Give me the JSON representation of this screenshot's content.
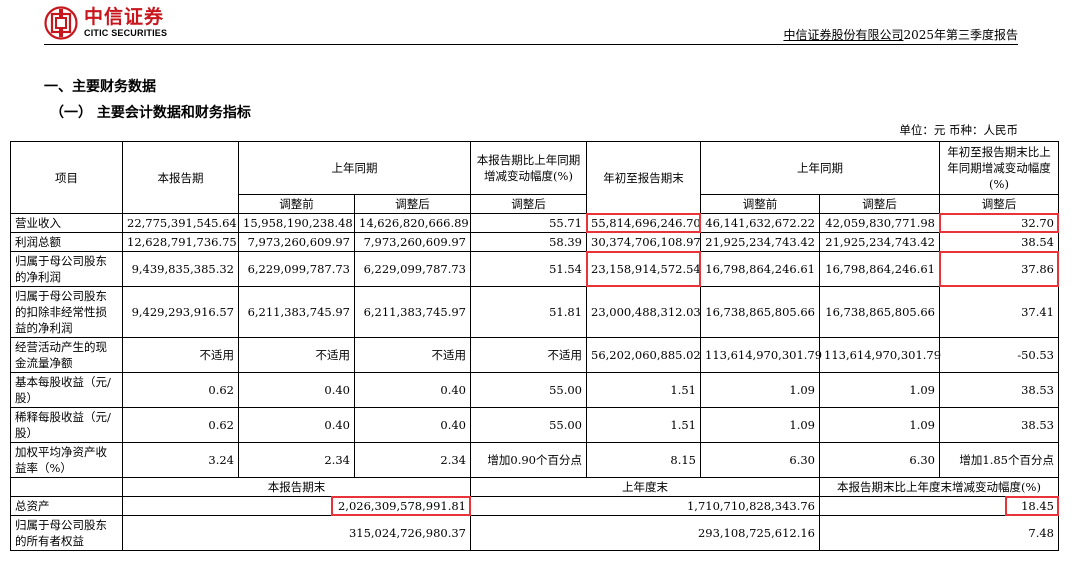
{
  "header": {
    "logo_cn": "中信证券",
    "logo_en": "CITIC SECURITIES",
    "company": "中信证券股份有限公司",
    "report": "2025年第三季度报告"
  },
  "section_title": "一、主要财务数据",
  "subsection_title": "（一） 主要会计数据和财务指标",
  "unit_line": "单位：元  币种：人民币",
  "table": {
    "head": {
      "item": "项目",
      "current": "本报告期",
      "prior_same": "上年同期",
      "change_current": "本报告期比上年同期增减变动幅度(%)",
      "ytd": "年初至报告期末",
      "prior_same_ytd": "上年同期",
      "change_ytd": "年初至报告期末比上年同期增减变动幅度(%)",
      "before_adj": "调整前",
      "after_adj": "调整后",
      "after_adj_change": "调整后",
      "before_adj_ytd": "调整前",
      "after_adj_ytd": "调整后",
      "after_adj_change_ytd": "调整后"
    },
    "rows": [
      {
        "item": "营业收入",
        "cur": "22,775,391,545.64",
        "pb": "15,958,190,238.48",
        "pa": "14,626,820,666.89",
        "chg": "55.71",
        "ytd": "55,814,696,246.70",
        "ypb": "46,141,632,672.22",
        "ypa": "42,059,830,771.98",
        "ychg": "32.70"
      },
      {
        "item": "利润总额",
        "cur": "12,628,791,736.75",
        "pb": "7,973,260,609.97",
        "pa": "7,973,260,609.97",
        "chg": "58.39",
        "ytd": "30,374,706,108.97",
        "ypb": "21,925,234,743.42",
        "ypa": "21,925,234,743.42",
        "ychg": "38.54"
      },
      {
        "item": "归属于母公司股东的净利润",
        "cur": "9,439,835,385.32",
        "pb": "6,229,099,787.73",
        "pa": "6,229,099,787.73",
        "chg": "51.54",
        "ytd": "23,158,914,572.54",
        "ypb": "16,798,864,246.61",
        "ypa": "16,798,864,246.61",
        "ychg": "37.86"
      },
      {
        "item": "归属于母公司股东的扣除非经常性损益的净利润",
        "cur": "9,429,293,916.57",
        "pb": "6,211,383,745.97",
        "pa": "6,211,383,745.97",
        "chg": "51.81",
        "ytd": "23,000,488,312.03",
        "ypb": "16,738,865,805.66",
        "ypa": "16,738,865,805.66",
        "ychg": "37.41"
      },
      {
        "item": "经营活动产生的现金流量净额",
        "cur": "不适用",
        "pb": "不适用",
        "pa": "不适用",
        "chg": "不适用",
        "ytd": "56,202,060,885.02",
        "ypb": "113,614,970,301.79",
        "ypa": "113,614,970,301.79",
        "ychg": "-50.53"
      },
      {
        "item": "基本每股收益（元/股）",
        "cur": "0.62",
        "pb": "0.40",
        "pa": "0.40",
        "chg": "55.00",
        "ytd": "1.51",
        "ypb": "1.09",
        "ypa": "1.09",
        "ychg": "38.53"
      },
      {
        "item": "稀释每股收益（元/股）",
        "cur": "0.62",
        "pb": "0.40",
        "pa": "0.40",
        "chg": "55.00",
        "ytd": "1.51",
        "ypb": "1.09",
        "ypa": "1.09",
        "ychg": "38.53"
      },
      {
        "item": "加权平均净资产收益率（%）",
        "cur": "3.24",
        "pb": "2.34",
        "pa": "2.34",
        "chg": "增加0.90个百分点",
        "ytd": "8.15",
        "ypb": "6.30",
        "ypa": "6.30",
        "ychg": "增加1.85个百分点"
      }
    ],
    "balance_head": {
      "period_end": "本报告期末",
      "prior_year_end": "上年度末",
      "change": "本报告期末比上年度末增减变动幅度(%)"
    },
    "balance_rows": [
      {
        "item": "总资产",
        "end": "2,026,309,578,991.81",
        "prior": "1,710,710,828,343.76",
        "chg": "18.45"
      },
      {
        "item": "归属于母公司股东的所有者权益",
        "end": "315,024,726,980.37",
        "prior": "293,108,725,612.16",
        "chg": "7.48"
      }
    ]
  }
}
